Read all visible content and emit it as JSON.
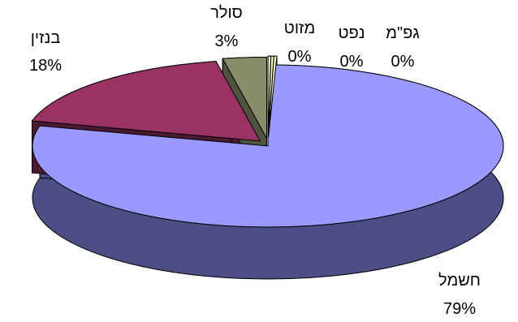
{
  "chart_data": {
    "type": "pie",
    "style": "3d-exploded",
    "slices": [
      {
        "name": "חשמל",
        "value": 79,
        "label": "79%",
        "color": "#9999ff",
        "side_color": "#4e4e86"
      },
      {
        "name": "בנזין",
        "value": 18,
        "label": "18%",
        "color": "#993366",
        "side_color": "#4a1a33"
      },
      {
        "name": "סולר",
        "value": 3,
        "label": "3%",
        "color": "#878d6a",
        "side_color": "#4f5340"
      },
      {
        "name": "גפ\"מ",
        "value": 0,
        "label": "0%",
        "color": "#ffffcc",
        "side_color": "#d6d6aa"
      },
      {
        "name": "נפט",
        "value": 0,
        "label": "0%",
        "color": "#ffffcc",
        "side_color": "#d6d6aa"
      },
      {
        "name": "מזוט",
        "value": 0,
        "label": "0%",
        "color": "#ffffcc",
        "side_color": "#d6d6aa"
      }
    ]
  }
}
